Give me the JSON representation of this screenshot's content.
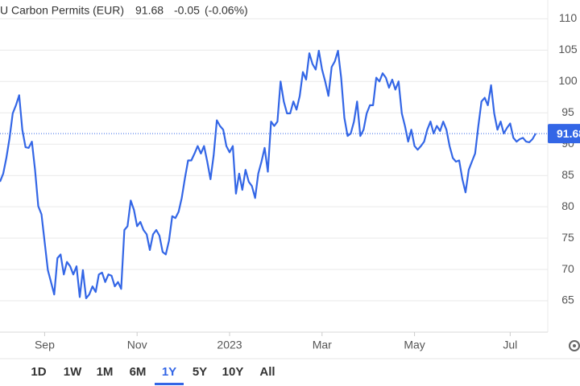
{
  "chart_data": {
    "type": "line",
    "title": "U Carbon Permits (EUR)",
    "last_price": 91.68,
    "change": "-0.05",
    "change_percent": "(-0.06%)",
    "color": "#3366e6",
    "change_color": "#e0443a",
    "grid": true,
    "ylim": [
      60,
      113
    ],
    "yticks": [
      65,
      70,
      75,
      80,
      85,
      90,
      95,
      100,
      105,
      110
    ],
    "xlim": [
      0,
      168
    ],
    "xticks": [
      {
        "value": 14,
        "label": "Sep"
      },
      {
        "value": 43,
        "label": "Nov"
      },
      {
        "value": 72,
        "label": "2023"
      },
      {
        "value": 101,
        "label": "Mar"
      },
      {
        "value": 130,
        "label": "May"
      },
      {
        "value": 160,
        "label": "Jul"
      }
    ],
    "values": [
      84.0,
      85.3,
      87.8,
      91.0,
      94.9,
      96.2,
      97.8,
      92.3,
      89.5,
      89.4,
      90.4,
      85.9,
      80.1,
      78.8,
      74.4,
      69.9,
      68.0,
      66.0,
      71.8,
      72.4,
      69.2,
      71.2,
      70.5,
      69.2,
      70.5,
      65.6,
      69.9,
      65.4,
      66.0,
      67.3,
      66.4,
      69.2,
      69.5,
      68.0,
      69.2,
      69.0,
      67.3,
      68.0,
      66.9,
      76.3,
      76.9,
      81.0,
      79.5,
      76.9,
      77.6,
      76.3,
      75.6,
      73.1,
      75.6,
      76.3,
      75.4,
      72.8,
      72.4,
      74.6,
      78.5,
      78.2,
      79.2,
      81.4,
      84.6,
      87.4,
      87.4,
      88.5,
      89.7,
      88.5,
      89.7,
      87.2,
      84.4,
      88.2,
      93.8,
      92.9,
      92.3,
      89.7,
      88.7,
      89.7,
      82.1,
      85.3,
      82.7,
      85.9,
      84.0,
      83.3,
      81.4,
      85.3,
      87.2,
      89.4,
      85.6,
      93.6,
      92.9,
      93.6,
      100.0,
      96.8,
      94.9,
      94.9,
      96.8,
      95.5,
      97.7,
      101.5,
      100.3,
      104.5,
      102.8,
      101.9,
      104.9,
      101.9,
      100.0,
      97.7,
      102.3,
      103.2,
      104.9,
      100.6,
      94.2,
      91.3,
      91.7,
      93.6,
      96.8,
      91.3,
      92.3,
      94.9,
      96.2,
      96.2,
      100.6,
      100.0,
      101.3,
      100.6,
      99.0,
      100.3,
      98.7,
      100.0,
      94.9,
      92.9,
      90.4,
      92.3,
      89.7,
      89.1,
      89.7,
      90.4,
      92.3,
      93.6,
      91.7,
      92.9,
      92.1,
      93.6,
      92.3,
      89.7,
      87.8,
      87.2,
      87.4,
      84.4,
      82.3,
      85.9,
      87.2,
      88.5,
      92.9,
      96.8,
      97.4,
      96.2,
      99.4,
      94.9,
      92.3,
      93.6,
      91.7,
      92.6,
      93.3,
      91.0,
      90.4,
      90.8,
      91.0,
      90.4,
      90.3,
      90.8,
      91.7
    ],
    "range_buttons": [
      "1D",
      "1W",
      "1M",
      "6M",
      "1Y",
      "5Y",
      "10Y",
      "All"
    ],
    "selected_range": "1Y"
  }
}
